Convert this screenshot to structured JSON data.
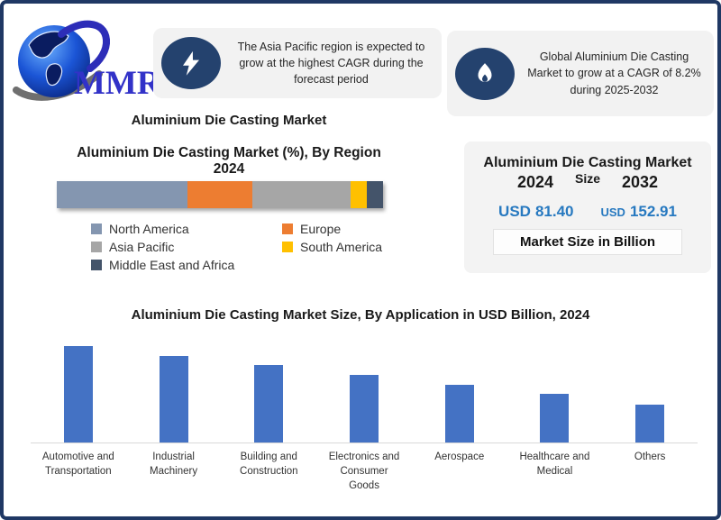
{
  "brand": {
    "logo_text": "MMR"
  },
  "callouts": [
    {
      "icon": "lightning-bolt",
      "text": "The Asia Pacific region is expected to grow at the highest CAGR during the forecast period"
    },
    {
      "icon": "flame",
      "text": "Global Aluminium Die Casting Market to grow at a CAGR of 8.2% during 2025-2032"
    }
  ],
  "main_title": "Aluminium Die Casting Market",
  "market_size_panel": {
    "title_line1": "Aluminium Die Casting Market",
    "title_line2": "Size",
    "year_left": "2024",
    "year_right": "2032",
    "value_left_prefix": "USD",
    "value_left": "81.40",
    "value_right_prefix": "USD",
    "value_right": "152.91",
    "footer": "Market Size in Billion",
    "value_color": "#2779c0"
  },
  "chart_data": [
    {
      "type": "bar",
      "variant": "stacked-horizontal",
      "title": "Aluminium Die Casting Market (%), By Region",
      "subtitle": "2024",
      "unit": "percent",
      "legend_position": "below",
      "series": [
        {
          "name": "North America",
          "value": 40,
          "color": "#8496b0"
        },
        {
          "name": "Europe",
          "value": 20,
          "color": "#ed7d31"
        },
        {
          "name": "Asia Pacific",
          "value": 30,
          "color": "#a6a6a6"
        },
        {
          "name": "South America",
          "value": 5,
          "color": "#ffc000"
        },
        {
          "name": "Middle East and Africa",
          "value": 5,
          "color": "#44546a"
        }
      ],
      "note": "segment shares estimated from bar widths; no data labels shown in image"
    },
    {
      "type": "bar",
      "title": "Aluminium Die Casting Market Size, By Application in USD Billion, 2024",
      "categories": [
        "Automotive and Transportation",
        "Industrial Machinery",
        "Building and Construction",
        "Electronics and Consumer Goods",
        "Aerospace",
        "Healthcare and Medical",
        "Others"
      ],
      "values": [
        100,
        90,
        80,
        70,
        60,
        50,
        39
      ],
      "values_note": "relative bar heights as % of tallest bar; no value axis or data labels shown in image",
      "bar_color": "#4472c4",
      "xlabel": "",
      "ylabel": "",
      "grid": false,
      "axis_line_color": "#d9d9d9",
      "legend_position": "none"
    }
  ]
}
